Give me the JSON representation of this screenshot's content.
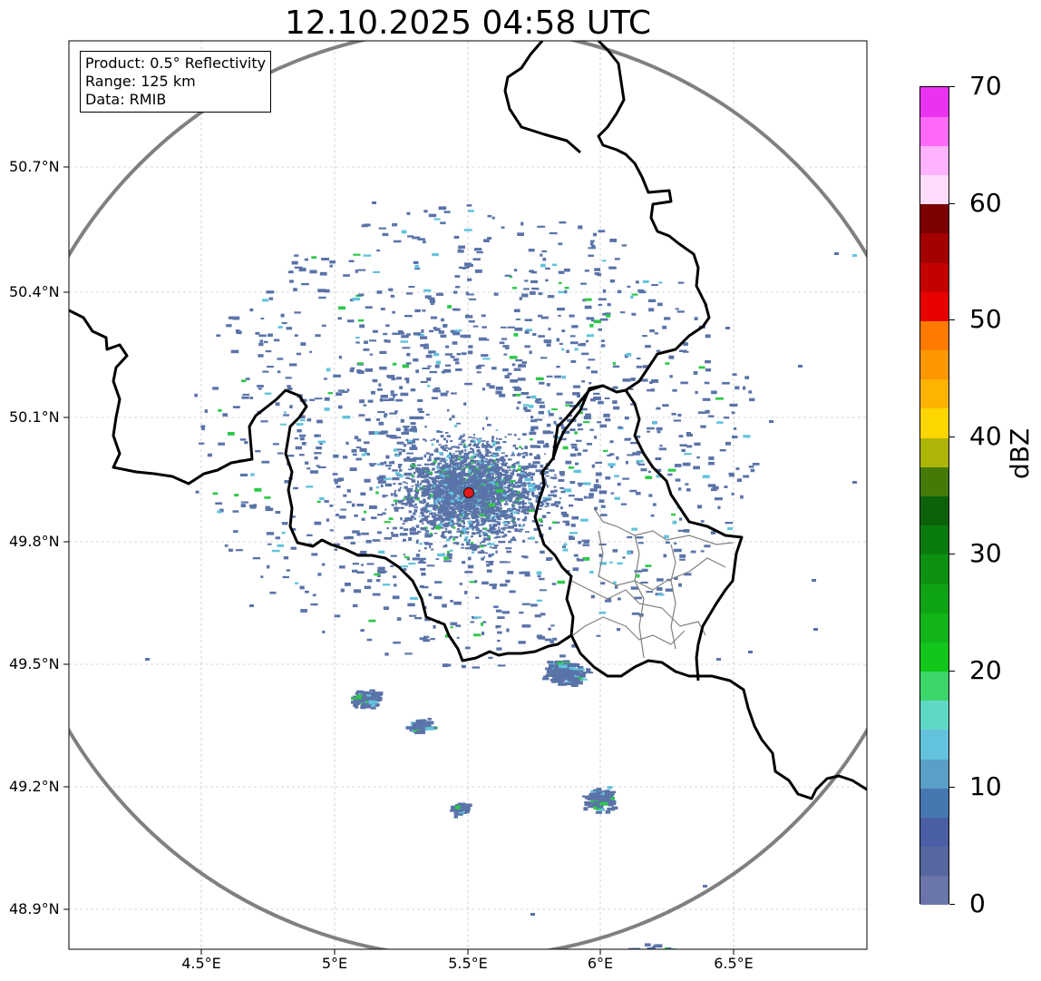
{
  "title": "12.10.2025 04:58 UTC",
  "info_box": {
    "product": "Product: 0.5° Reflectivity",
    "range": "Range: 125 km",
    "data": "Data: RMIB"
  },
  "axes": {
    "lat_labels": [
      "50.7°N",
      "50.4°N",
      "50.1°N",
      "49.8°N",
      "49.5°N",
      "49.2°N",
      "48.9°N"
    ],
    "lon_labels": [
      "4.5°E",
      "5°E",
      "5.5°E",
      "6°E",
      "6.5°E"
    ]
  },
  "radar": {
    "site_color": "#e41a1c"
  },
  "colorbar": {
    "label": "dBZ",
    "min": 0,
    "max": 70,
    "ticks": [
      "0",
      "10",
      "20",
      "30",
      "40",
      "50",
      "60",
      "70"
    ],
    "colors": [
      "#6a75a9",
      "#56679f",
      "#4a5ea6",
      "#4777b0",
      "#5a9fc8",
      "#63c2dd",
      "#5fd9c6",
      "#3dd66a",
      "#12c61a",
      "#11b519",
      "#0fa414",
      "#0c9111",
      "#0a7c0e",
      "#0a620a",
      "#457a09",
      "#adb506",
      "#fdd600",
      "#fdb300",
      "#fd9700",
      "#fe7b00",
      "#e80000",
      "#c50000",
      "#a30000",
      "#7c0000",
      "#ffdcfc",
      "#ffb2fd",
      "#fe69f9",
      "#ea33f0"
    ]
  },
  "colors": {
    "border": "#000000",
    "subregion": "#808080",
    "range_ring": "#808080",
    "grid": "#b5b5b5",
    "echo_primary": "#5a73a8",
    "echo_light": "#62c3dc",
    "echo_green": "#2ec94a"
  }
}
